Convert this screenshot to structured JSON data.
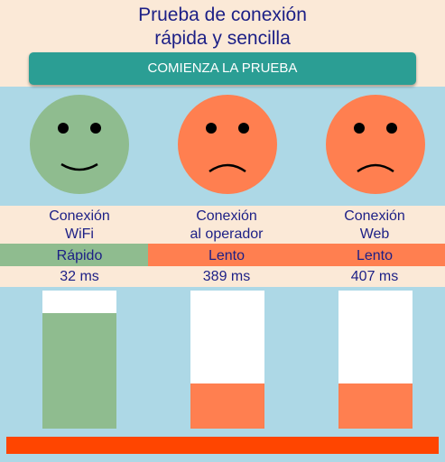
{
  "header": {
    "title": [
      "Prueba de conexión",
      "rápida y sencilla"
    ]
  },
  "button": {
    "label": "COMIENZA LA PRUEBA"
  },
  "columns": [
    {
      "label": [
        "Conexión",
        "WiFi"
      ],
      "status": "Rápido",
      "latency": "32 ms"
    },
    {
      "label": [
        "Conexión",
        "al operador"
      ],
      "status": "Lento",
      "latency": "389 ms"
    },
    {
      "label": [
        "Conexión",
        "Web"
      ],
      "status": "Lento",
      "latency": "407 ms"
    }
  ]
}
